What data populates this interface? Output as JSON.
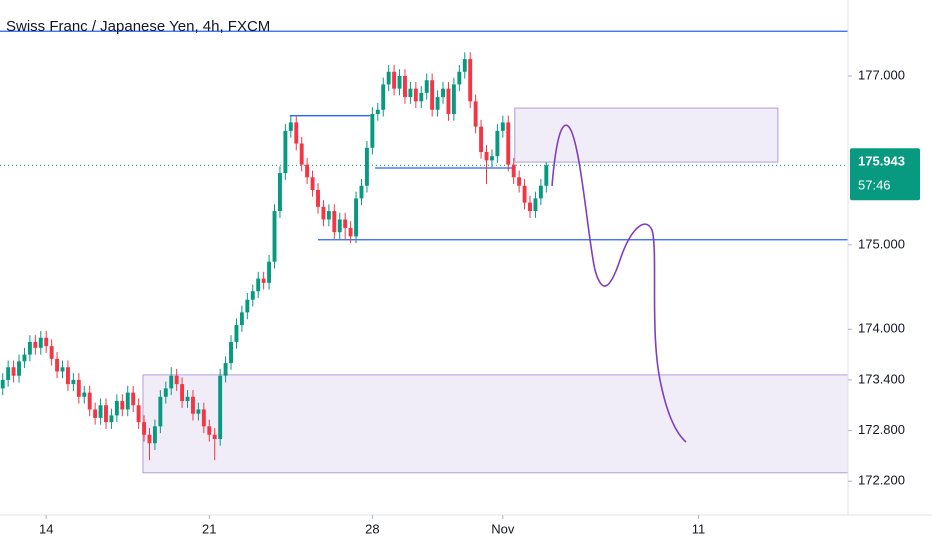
{
  "chart_data": {
    "type": "candlestick",
    "title": "Swiss Franc / Japanese Yen, 4h, FXCM",
    "up_color": "#089981",
    "down_color": "#f23645",
    "xlim": [
      -0.5,
      155.5
    ],
    "ylim": [
      171.8,
      177.9
    ],
    "xticks": [
      {
        "value": 8,
        "label": "14"
      },
      {
        "value": 38,
        "label": "21"
      },
      {
        "value": 68,
        "label": "28"
      },
      {
        "value": 92,
        "label": "Nov"
      },
      {
        "value": 128,
        "label": "11"
      }
    ],
    "yticks": [
      {
        "value": 177,
        "label": "177.000"
      },
      {
        "value": 175,
        "label": "175.000"
      },
      {
        "value": 174,
        "label": "174.000"
      },
      {
        "value": 173.4,
        "label": "173.400"
      },
      {
        "value": 172.8,
        "label": "172.800"
      },
      {
        "value": 172.2,
        "label": "172.200"
      }
    ],
    "countdown": "57:46",
    "lines": [
      {
        "x": [
          -0.5,
          155.5
        ],
        "y": 177.53
      },
      {
        "x": [
          58,
          155.5
        ],
        "y": 175.06
      },
      {
        "x": [
          52.8,
          67.6
        ],
        "y": 176.53
      },
      {
        "x": [
          68.5,
          94.2
        ],
        "y": 175.91
      }
    ],
    "zones": [
      {
        "x": [
          94.2,
          142.6
        ],
        "y": [
          175.98,
          176.62
        ]
      },
      {
        "x": [
          25.8,
          155.5
        ],
        "y": [
          172.3,
          173.46
        ]
      }
    ],
    "candles": [
      [
        173.3,
        173.48,
        173.22,
        173.4
      ],
      [
        173.4,
        173.63,
        173.32,
        173.55
      ],
      [
        173.55,
        173.63,
        173.37,
        173.45
      ],
      [
        173.45,
        173.7,
        173.37,
        173.62
      ],
      [
        173.62,
        173.78,
        173.54,
        173.7
      ],
      [
        173.7,
        173.93,
        173.62,
        173.85
      ],
      [
        173.85,
        173.93,
        173.7,
        173.78
      ],
      [
        173.78,
        173.98,
        173.7,
        173.9
      ],
      [
        173.9,
        173.98,
        173.72,
        173.8
      ],
      [
        173.8,
        173.88,
        173.57,
        173.65
      ],
      [
        173.65,
        173.73,
        173.42,
        173.5
      ],
      [
        173.5,
        173.63,
        173.42,
        173.55
      ],
      [
        173.55,
        173.63,
        173.27,
        173.35
      ],
      [
        173.35,
        173.48,
        173.27,
        173.4
      ],
      [
        173.4,
        173.48,
        173.12,
        173.2
      ],
      [
        173.2,
        173.33,
        173.12,
        173.25
      ],
      [
        173.25,
        173.33,
        172.97,
        173.05
      ],
      [
        173.05,
        173.13,
        172.87,
        172.95
      ],
      [
        172.95,
        173.18,
        172.87,
        173.1
      ],
      [
        173.1,
        173.18,
        172.82,
        172.9
      ],
      [
        172.9,
        173.06,
        172.82,
        172.98
      ],
      [
        172.98,
        173.23,
        172.9,
        173.15
      ],
      [
        173.15,
        173.23,
        172.97,
        173.05
      ],
      [
        173.05,
        173.33,
        172.97,
        173.25
      ],
      [
        173.25,
        173.33,
        173.02,
        173.1
      ],
      [
        173.1,
        173.18,
        172.82,
        172.9
      ],
      [
        172.9,
        172.98,
        172.67,
        172.75
      ],
      [
        172.75,
        172.83,
        172.45,
        172.65
      ],
      [
        172.65,
        172.93,
        172.57,
        172.85
      ],
      [
        172.85,
        173.28,
        172.77,
        173.2
      ],
      [
        173.2,
        173.38,
        173.12,
        173.3
      ],
      [
        173.3,
        173.55,
        173.22,
        173.45
      ],
      [
        173.45,
        173.53,
        173.27,
        173.35
      ],
      [
        173.35,
        173.43,
        173.07,
        173.15
      ],
      [
        173.15,
        173.28,
        173.07,
        173.2
      ],
      [
        173.2,
        173.28,
        172.92,
        173.0
      ],
      [
        173.0,
        173.13,
        172.92,
        173.05
      ],
      [
        173.05,
        173.13,
        172.77,
        172.85
      ],
      [
        172.85,
        172.93,
        172.67,
        172.75
      ],
      [
        172.75,
        172.83,
        172.45,
        172.7
      ],
      [
        172.7,
        173.53,
        172.62,
        173.45
      ],
      [
        173.45,
        173.68,
        173.37,
        173.6
      ],
      [
        173.6,
        173.93,
        173.52,
        173.85
      ],
      [
        173.85,
        174.13,
        173.77,
        174.05
      ],
      [
        174.05,
        174.28,
        173.97,
        174.2
      ],
      [
        174.2,
        174.43,
        174.12,
        174.35
      ],
      [
        174.35,
        174.53,
        174.27,
        174.45
      ],
      [
        174.45,
        174.68,
        174.37,
        174.6
      ],
      [
        174.6,
        174.68,
        174.47,
        174.55
      ],
      [
        174.55,
        174.88,
        174.47,
        174.8
      ],
      [
        174.8,
        175.48,
        174.72,
        175.4
      ],
      [
        175.4,
        175.93,
        175.32,
        175.85
      ],
      [
        175.85,
        176.43,
        175.77,
        176.35
      ],
      [
        176.35,
        176.53,
        176.27,
        176.45
      ],
      [
        176.45,
        176.53,
        176.12,
        176.2
      ],
      [
        176.2,
        176.28,
        175.87,
        175.95
      ],
      [
        175.95,
        176.03,
        175.72,
        175.8
      ],
      [
        175.8,
        175.88,
        175.57,
        175.65
      ],
      [
        175.65,
        175.73,
        175.37,
        175.45
      ],
      [
        175.45,
        175.53,
        175.22,
        175.3
      ],
      [
        175.3,
        175.48,
        175.22,
        175.4
      ],
      [
        175.4,
        175.48,
        175.07,
        175.15
      ],
      [
        175.15,
        175.38,
        175.07,
        175.3
      ],
      [
        175.3,
        175.38,
        175.07,
        175.2
      ],
      [
        175.2,
        175.28,
        175.02,
        175.1
      ],
      [
        175.1,
        175.63,
        175.02,
        175.55
      ],
      [
        175.55,
        175.78,
        175.47,
        175.7
      ],
      [
        175.7,
        176.23,
        175.62,
        176.15
      ],
      [
        176.15,
        176.63,
        176.07,
        176.55
      ],
      [
        176.55,
        176.68,
        176.47,
        176.6
      ],
      [
        176.6,
        176.98,
        176.52,
        176.9
      ],
      [
        176.9,
        177.13,
        176.82,
        177.05
      ],
      [
        177.05,
        177.13,
        176.77,
        176.85
      ],
      [
        176.85,
        177.08,
        176.77,
        177.0
      ],
      [
        177.0,
        177.08,
        176.67,
        176.75
      ],
      [
        176.75,
        176.93,
        176.67,
        176.85
      ],
      [
        176.85,
        176.93,
        176.62,
        176.7
      ],
      [
        176.7,
        176.88,
        176.62,
        176.8
      ],
      [
        176.8,
        177.03,
        176.72,
        176.95
      ],
      [
        176.95,
        177.03,
        176.52,
        176.6
      ],
      [
        176.6,
        176.83,
        176.52,
        176.75
      ],
      [
        176.75,
        176.93,
        176.67,
        176.85
      ],
      [
        176.85,
        176.93,
        176.47,
        176.55
      ],
      [
        176.55,
        176.98,
        176.47,
        176.9
      ],
      [
        176.9,
        177.13,
        176.82,
        177.05
      ],
      [
        177.05,
        177.28,
        176.97,
        177.2
      ],
      [
        177.2,
        177.28,
        176.62,
        176.7
      ],
      [
        176.7,
        176.78,
        176.32,
        176.4
      ],
      [
        176.4,
        176.48,
        176.02,
        176.1
      ],
      [
        176.1,
        176.18,
        175.72,
        176.0
      ],
      [
        176.0,
        176.13,
        175.92,
        176.05
      ],
      [
        176.05,
        176.43,
        175.97,
        176.35
      ],
      [
        176.35,
        176.53,
        176.27,
        176.45
      ],
      [
        176.45,
        176.53,
        175.87,
        175.95
      ],
      [
        175.95,
        176.03,
        175.72,
        175.8
      ],
      [
        175.8,
        175.88,
        175.62,
        175.7
      ],
      [
        175.7,
        175.78,
        175.42,
        175.5
      ],
      [
        175.5,
        175.58,
        175.32,
        175.4
      ],
      [
        175.4,
        175.63,
        175.32,
        175.55
      ],
      [
        175.55,
        175.78,
        175.47,
        175.7
      ],
      [
        175.7,
        175.98,
        175.62,
        175.943
      ]
    ]
  }
}
